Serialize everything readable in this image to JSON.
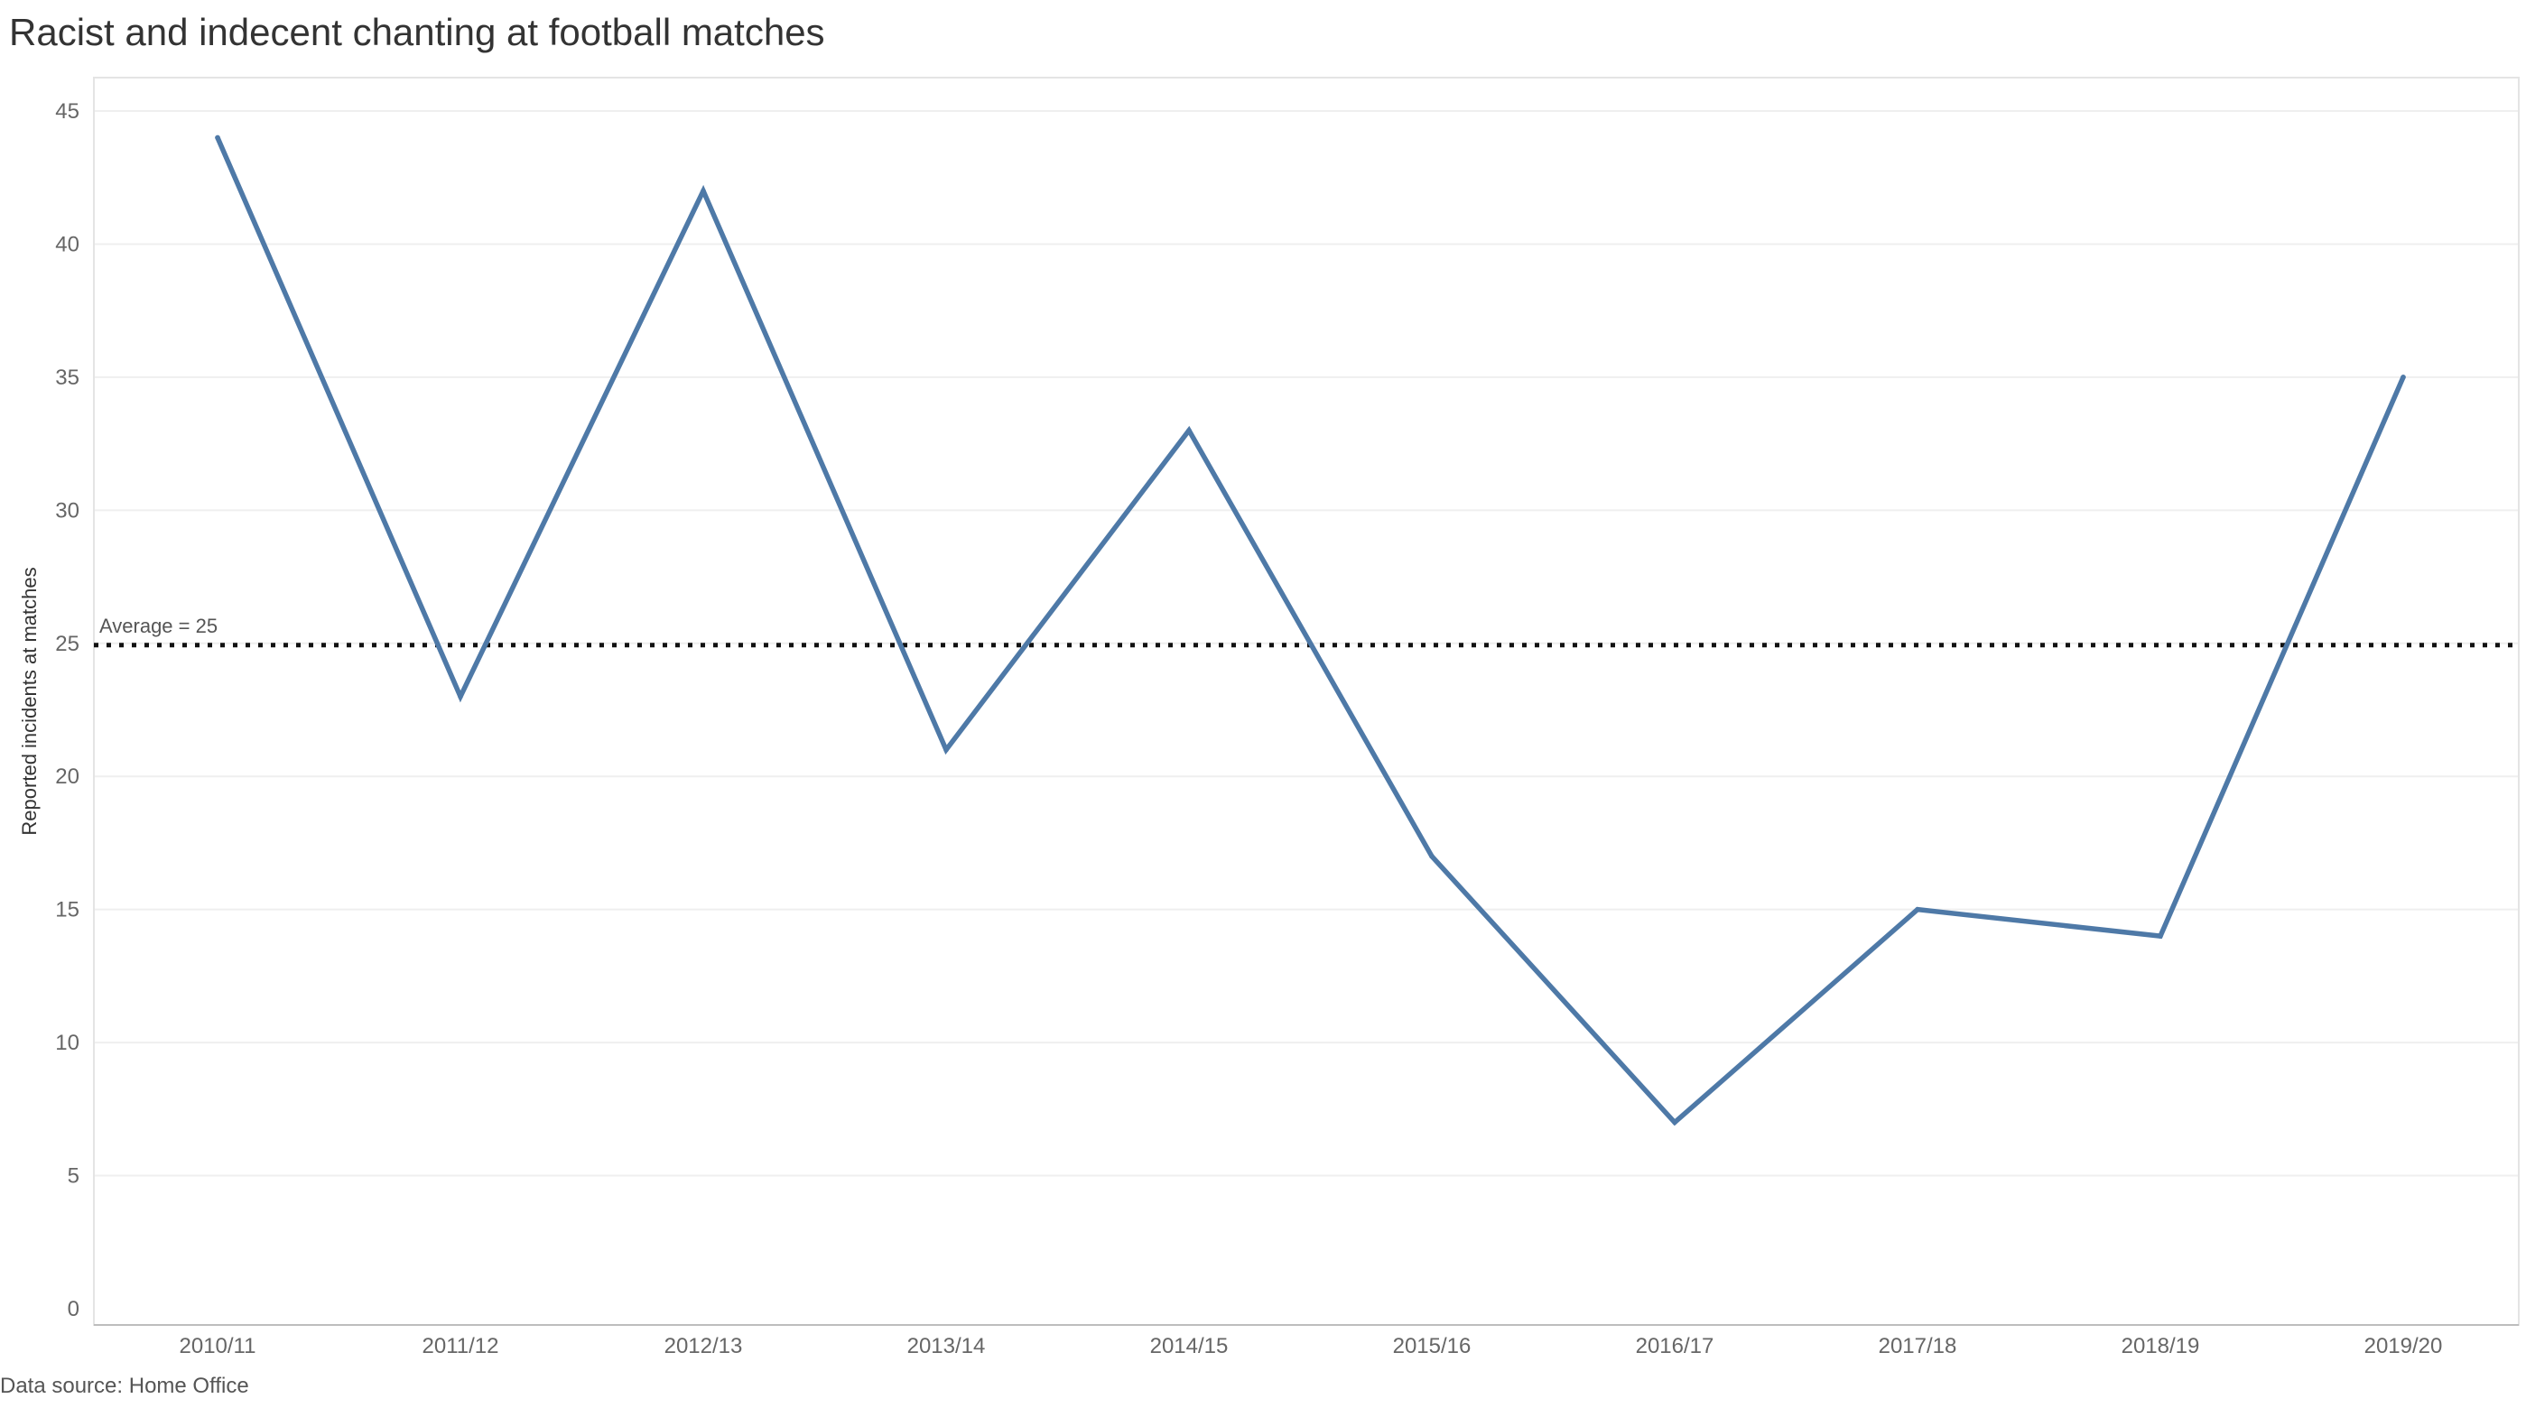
{
  "chart_data": {
    "type": "line",
    "title": "Racist and indecent chanting at football matches",
    "ylabel": "Reported incidents at matches",
    "xlabel": "",
    "categories": [
      "2010/11",
      "2011/12",
      "2012/13",
      "2013/14",
      "2014/15",
      "2015/16",
      "2016/17",
      "2017/18",
      "2018/19",
      "2019/20"
    ],
    "values": [
      44,
      23,
      42,
      21,
      33,
      17,
      7,
      15,
      14,
      35
    ],
    "ylim": [
      0,
      45
    ],
    "yticks": [
      0,
      5,
      10,
      15,
      20,
      25,
      30,
      35,
      40,
      45
    ],
    "reference_line": {
      "value": 25,
      "label": "Average = 25",
      "style": "dotted"
    },
    "grid": true,
    "legend": "none",
    "line_color": "#4e79a7"
  },
  "footer": {
    "source": "Data source: Home Office"
  }
}
